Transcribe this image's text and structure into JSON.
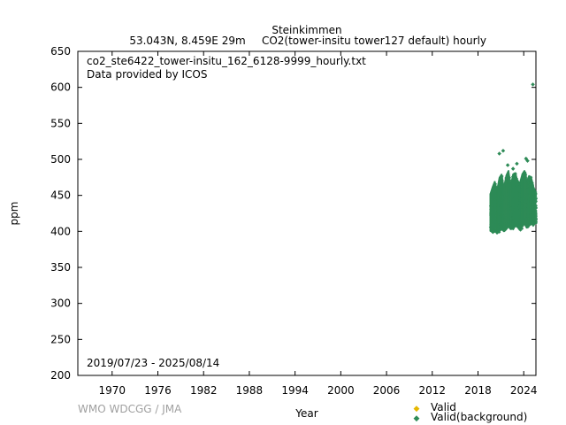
{
  "chart_data": {
    "type": "scatter",
    "title": "Steinkimmen",
    "subtitle_location": "53.043N, 8.459E 29m",
    "subtitle_series": "CO2(tower-insitu tower127 default) hourly",
    "file_name": "co2_ste6422_tower-insitu_162_6128-9999_hourly.txt",
    "provider": "Data provided by ICOS",
    "date_range": "2019/07/23 - 2025/08/14",
    "xlabel": "Year",
    "ylabel": "ppm",
    "credit": "WMO WDCGG / JMA",
    "xlim": [
      1965.5,
      2025.6
    ],
    "ylim": [
      200,
      650
    ],
    "x_ticks": [
      1970,
      1976,
      1982,
      1988,
      1994,
      2000,
      2006,
      2012,
      2018,
      2024
    ],
    "y_ticks": [
      200,
      250,
      300,
      350,
      400,
      450,
      500,
      550,
      600,
      650
    ],
    "grid": false,
    "legend_position": "bottom-right",
    "series": [
      {
        "name": "Valid",
        "color": "#e6b800",
        "points": []
      },
      {
        "name": "Valid(background)",
        "color": "#2e8b57",
        "ranges": [
          {
            "x": 2019.6,
            "min": 400,
            "max": 452
          },
          {
            "x": 2019.9,
            "min": 398,
            "max": 462
          },
          {
            "x": 2020.2,
            "min": 401,
            "max": 470
          },
          {
            "x": 2020.5,
            "min": 396,
            "max": 458
          },
          {
            "x": 2020.8,
            "min": 400,
            "max": 475
          },
          {
            "x": 2021.1,
            "min": 404,
            "max": 480
          },
          {
            "x": 2021.4,
            "min": 399,
            "max": 462
          },
          {
            "x": 2021.7,
            "min": 402,
            "max": 478
          },
          {
            "x": 2022.0,
            "min": 406,
            "max": 485
          },
          {
            "x": 2022.3,
            "min": 402,
            "max": 465
          },
          {
            "x": 2022.6,
            "min": 404,
            "max": 480
          },
          {
            "x": 2022.9,
            "min": 408,
            "max": 482
          },
          {
            "x": 2023.2,
            "min": 405,
            "max": 470
          },
          {
            "x": 2023.5,
            "min": 401,
            "max": 468
          },
          {
            "x": 2023.8,
            "min": 406,
            "max": 480
          },
          {
            "x": 2024.1,
            "min": 410,
            "max": 485
          },
          {
            "x": 2024.4,
            "min": 404,
            "max": 470
          },
          {
            "x": 2024.7,
            "min": 407,
            "max": 478
          },
          {
            "x": 2025.0,
            "min": 410,
            "max": 475
          },
          {
            "x": 2025.3,
            "min": 408,
            "max": 462
          },
          {
            "x": 2025.55,
            "min": 412,
            "max": 455
          }
        ],
        "outliers": [
          {
            "x": 2020.8,
            "y": 508
          },
          {
            "x": 2021.3,
            "y": 512
          },
          {
            "x": 2021.9,
            "y": 492
          },
          {
            "x": 2022.6,
            "y": 487
          },
          {
            "x": 2023.1,
            "y": 494
          },
          {
            "x": 2024.3,
            "y": 501
          },
          {
            "x": 2024.5,
            "y": 498
          },
          {
            "x": 2025.2,
            "y": 604
          }
        ]
      }
    ]
  }
}
